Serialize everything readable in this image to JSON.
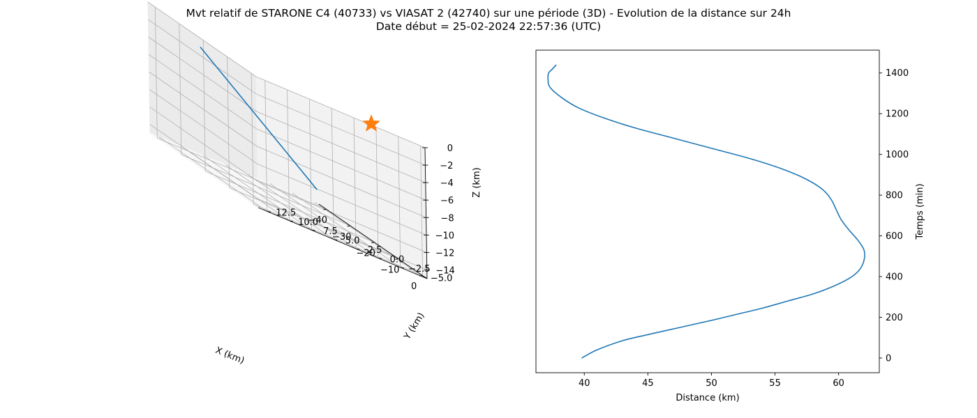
{
  "figure": {
    "title_line1": "Mvt relatif de STARONE C4 (40733) vs VIASAT 2 (42740) sur une période (3D) - Evolution de la distance sur 24h",
    "title_line2": "Date début = 25-02-2024 22:57:36 (UTC)"
  },
  "colors": {
    "series": "#1f77b4",
    "marker": "#ff7f0e",
    "pane": "#f2f2f2",
    "grid": "#b0b0b0"
  },
  "chart_data": [
    {
      "type": "line3d",
      "xlabel": "X (km)",
      "ylabel": "Y (km)",
      "zlabel": "Z (km)",
      "xlim": [
        -43,
        2
      ],
      "ylim": [
        -5.5,
        13.5
      ],
      "zlim": [
        -15,
        0
      ],
      "xticks": [
        -40,
        -30,
        -20,
        -10,
        0
      ],
      "yticks": [
        -5.0,
        -2.5,
        0.0,
        2.5,
        5.0,
        7.5,
        10.0,
        12.5
      ],
      "zticks": [
        0,
        -2,
        -4,
        -6,
        -8,
        -10,
        -12,
        -14
      ],
      "ytick_labels": [
        "−5.0",
        "−2.5",
        "0.0",
        "2.5",
        "5.0",
        "7.5",
        "10.0",
        "12.5"
      ],
      "series": [
        {
          "x": [
            -40,
            -25
          ],
          "y": [
            -4.5,
            12.5
          ],
          "z": [
            -13.2,
            -1.3
          ]
        }
      ],
      "marker": {
        "shape": "star",
        "x": 0,
        "y": 0,
        "z": 0
      },
      "grid": true
    },
    {
      "type": "line",
      "xlabel": "Distance (km)",
      "ylabel": "Temps (min)",
      "xlim": [
        36.2,
        63.2
      ],
      "ylim": [
        -72,
        1512
      ],
      "xticks": [
        40,
        45,
        50,
        55,
        60
      ],
      "yticks": [
        0,
        200,
        400,
        600,
        800,
        1000,
        1200,
        1400
      ],
      "series": [
        {
          "x": [
            39.8,
            41.0,
            43.0,
            45.0,
            47.5,
            50.0,
            52.0,
            54.0,
            56.0,
            58.0,
            59.5,
            60.8,
            61.6,
            62.0,
            62.0,
            61.5,
            60.8,
            60.2,
            59.8,
            59.4,
            58.7,
            57.4,
            55.5,
            53.0,
            50.0,
            47.0,
            44.0,
            41.5,
            39.5,
            38.2,
            37.3,
            37.15,
            37.2,
            37.5,
            37.8
          ],
          "y": [
            0,
            40,
            85,
            115,
            150,
            185,
            215,
            245,
            280,
            315,
            350,
            390,
            430,
            480,
            530,
            580,
            630,
            680,
            730,
            780,
            830,
            880,
            930,
            980,
            1030,
            1080,
            1130,
            1180,
            1230,
            1280,
            1330,
            1370,
            1400,
            1420,
            1440
          ]
        }
      ],
      "grid": false
    }
  ]
}
